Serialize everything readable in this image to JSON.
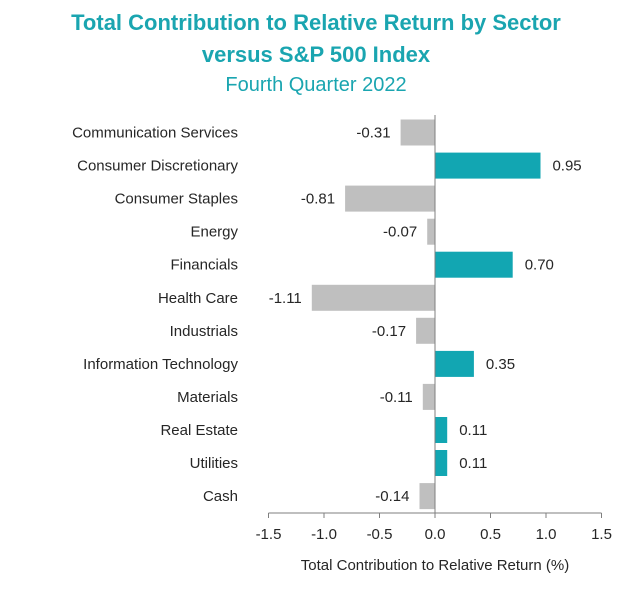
{
  "chart_data": {
    "type": "bar",
    "orientation": "horizontal",
    "title": "Total Contribution to Relative Return by Sector",
    "title_line2": "versus S&P 500 Index",
    "subtitle": "Fourth Quarter 2022",
    "xlabel": "Total Contribution to Relative Return (%)",
    "ylabel": "",
    "xlim": [
      -1.5,
      1.5
    ],
    "xticks": [
      "-1.5",
      "-1.0",
      "-0.5",
      "0.0",
      "0.5",
      "1.0",
      "1.5"
    ],
    "xtick_values": [
      -1.5,
      -1.0,
      -0.5,
      0.0,
      0.5,
      1.0,
      1.5
    ],
    "grid": false,
    "categories": [
      "Communication Services",
      "Consumer Discretionary",
      "Consumer Staples",
      "Energy",
      "Financials",
      "Health Care",
      "Industrials",
      "Information Technology",
      "Materials",
      "Real Estate",
      "Utilities",
      "Cash"
    ],
    "values": [
      -0.31,
      0.95,
      -0.81,
      -0.07,
      0.7,
      -1.11,
      -0.17,
      0.35,
      -0.11,
      0.11,
      0.11,
      -0.14
    ],
    "value_labels": [
      "-0.31",
      "0.95",
      "-0.81",
      "-0.07",
      "0.70",
      "-1.11",
      "-0.17",
      "0.35",
      "-0.11",
      "0.11",
      "0.11",
      "-0.14"
    ],
    "colors": {
      "positive": "#12a6b2",
      "negative": "#bfbfbf",
      "title": "#1aa5b0",
      "axis": "#7f7f7f",
      "text": "#262626"
    }
  }
}
